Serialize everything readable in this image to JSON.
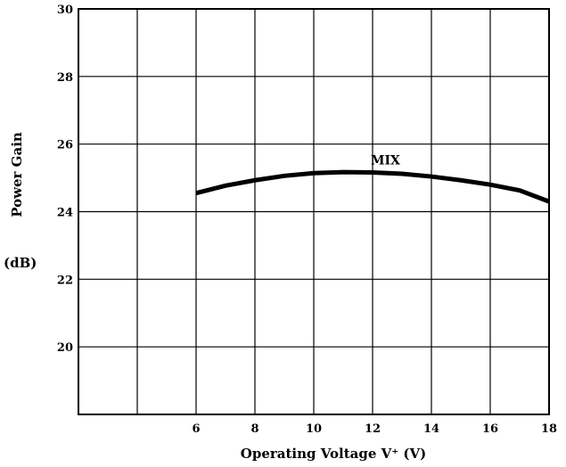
{
  "chart_data": {
    "type": "line",
    "title": "",
    "xlabel": "Operating Voltage V⁺ (V)",
    "ylabel": "Power Gain",
    "ylabel_unit": "(dB)",
    "xlim": [
      2,
      18
    ],
    "ylim": [
      18,
      30
    ],
    "x_ticks": [
      6,
      8,
      10,
      12,
      14,
      16,
      18
    ],
    "y_ticks": [
      20,
      22,
      24,
      26,
      28,
      30
    ],
    "x_grid": [
      2,
      4,
      6,
      8,
      10,
      12,
      14,
      16,
      18
    ],
    "y_grid": [
      18,
      20,
      22,
      24,
      26,
      28,
      30
    ],
    "grid": true,
    "series": [
      {
        "name": "MIX",
        "x": [
          6,
          7,
          8,
          9,
          10,
          11,
          12,
          13,
          14,
          15,
          16,
          17,
          18
        ],
        "y": [
          24.55,
          24.77,
          24.93,
          25.06,
          25.14,
          25.17,
          25.16,
          25.12,
          25.04,
          24.93,
          24.8,
          24.63,
          24.3
        ]
      }
    ]
  }
}
